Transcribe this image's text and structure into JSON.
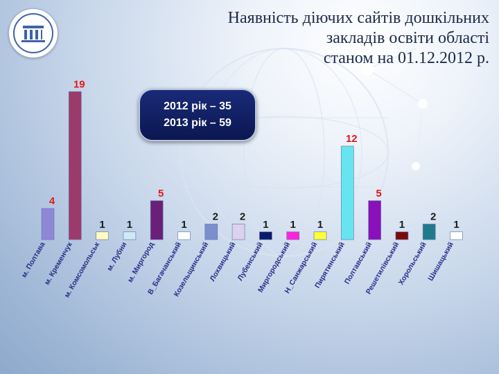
{
  "title": "Наявність діючих сайтів дошкільних\nзакладів освіти області\nстаном на 01.12.2012 р.",
  "infobox": {
    "line1": "2012 рік – 35",
    "line2": "2013 рік – 59"
  },
  "logo_icon": "columns-building-icon",
  "chart_data": {
    "type": "bar",
    "title": "Наявність діючих сайтів дошкільних закладів освіти області станом на 01.12.2012 р.",
    "categories": [
      "м. Полтава",
      "м. Кременчук",
      "м. Комсомольськ",
      "м. Лубни",
      "м. Миргород",
      "В_Багачанський",
      "Козельщинський",
      "Лохвицький",
      "Лубенський",
      "Миргородський",
      "Н_Санжарський",
      "Пирятинський",
      "Полтавський",
      "Решетилівський",
      "Хорольський",
      "Шишацький"
    ],
    "values": [
      4,
      19,
      1,
      1,
      5,
      1,
      2,
      2,
      1,
      1,
      1,
      12,
      5,
      1,
      2,
      1
    ],
    "colors": [
      "#8e86d6",
      "#9b3b6b",
      "#fffbc0",
      "#cfe9f6",
      "#6a1f78",
      "#ffffff",
      "#7a8ed0",
      "#dcd2ee",
      "#0a1a6c",
      "#ff22dd",
      "#ffff33",
      "#66e5f0",
      "#8a10bb",
      "#7a0a0a",
      "#1f7a8c",
      "#ffffff"
    ],
    "ylim": [
      0,
      20
    ],
    "xlabel": "",
    "ylabel": "",
    "grid": false,
    "legend": "none"
  }
}
